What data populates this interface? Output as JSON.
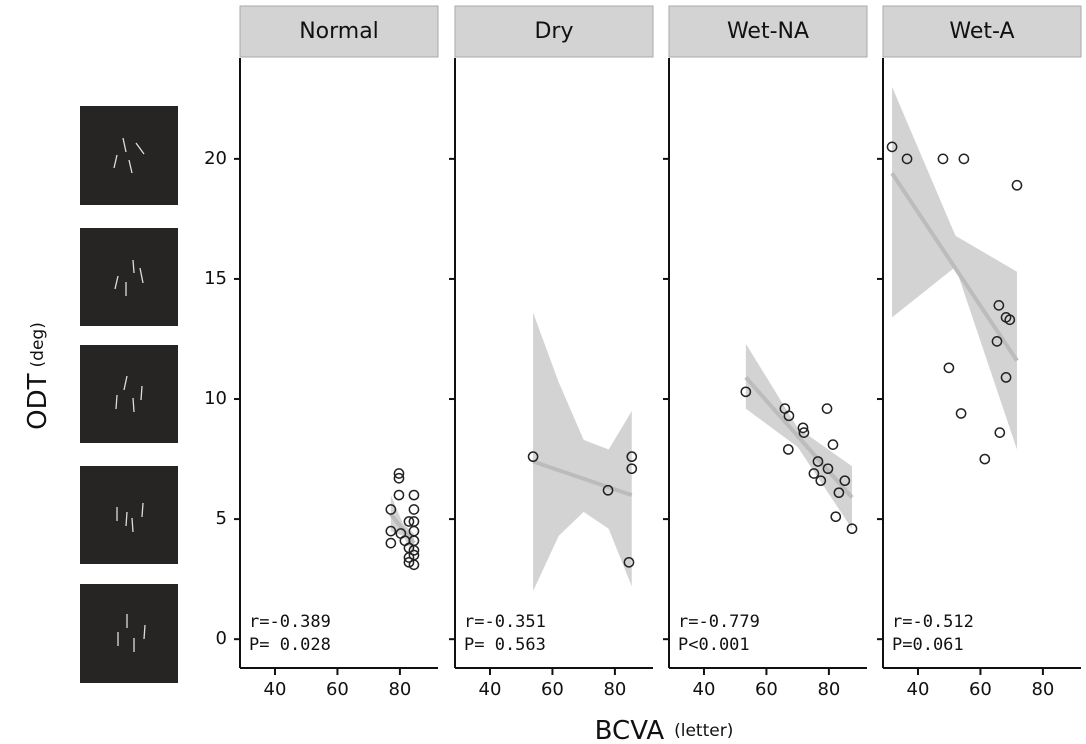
{
  "figure": {
    "y_label": "ODT",
    "y_label_unit": "(deg)",
    "x_label": "BCVA",
    "x_label_unit": "(letter)"
  },
  "chart_data": [
    {
      "type": "scatter",
      "title": "Normal",
      "xlim": [
        28.8,
        92.2
      ],
      "ylim": [
        -1.2,
        24.2
      ],
      "xticks": [
        40,
        60,
        80
      ],
      "yticks": [
        0,
        5,
        10,
        15,
        20
      ],
      "x": [
        79.7,
        79.7,
        79.7,
        84.5,
        77.1,
        84.5,
        84.5,
        82.9,
        77.1,
        80.3,
        84.5,
        81.6,
        77.1,
        84.5,
        82.9,
        84.5,
        82.9,
        84.5,
        82.9,
        84.5
      ],
      "y": [
        6.9,
        6.7,
        6.0,
        6.0,
        5.4,
        5.4,
        4.9,
        4.9,
        4.5,
        4.4,
        4.5,
        4.1,
        4.0,
        4.1,
        3.8,
        3.7,
        3.4,
        3.5,
        3.2,
        3.1
      ],
      "fit": {
        "x": [
          77.1,
          84.5
        ],
        "y": [
          5.2,
          4.0
        ]
      },
      "band": {
        "x": [
          77.1,
          81,
          84.5
        ],
        "lower": [
          4.5,
          4.3,
          3.5
        ],
        "upper": [
          6.0,
          4.8,
          4.4
        ]
      },
      "annotations": [
        "r=-0.389",
        "P= 0.028"
      ]
    },
    {
      "type": "scatter",
      "title": "Dry",
      "xlim": [
        28.8,
        92.2
      ],
      "ylim": [
        -1.2,
        24.2
      ],
      "xticks": [
        40,
        60,
        80
      ],
      "yticks": [
        0,
        5,
        10,
        15,
        20
      ],
      "x": [
        53.8,
        77.8,
        85.4,
        85.4,
        84.5
      ],
      "y": [
        7.6,
        6.2,
        7.6,
        7.1,
        3.2
      ],
      "fit": {
        "x": [
          53.8,
          85.4
        ],
        "y": [
          7.4,
          6.0
        ]
      },
      "band": {
        "x": [
          53.8,
          62,
          70,
          78,
          85.4
        ],
        "lower": [
          2.0,
          4.3,
          5.3,
          4.6,
          2.2
        ],
        "upper": [
          13.6,
          10.7,
          8.3,
          7.9,
          9.5
        ]
      },
      "annotations": [
        "r=-0.351",
        "P= 0.563"
      ]
    },
    {
      "type": "scatter",
      "title": "Wet-NA",
      "xlim": [
        28.8,
        92.2
      ],
      "ylim": [
        -1.2,
        24.2
      ],
      "xticks": [
        40,
        60,
        80
      ],
      "yticks": [
        0,
        5,
        10,
        15,
        20
      ],
      "x": [
        53.4,
        65.9,
        67.2,
        71.7,
        72.0,
        79.4,
        81.3,
        67.0,
        76.5,
        79.7,
        75.2,
        77.4,
        85.1,
        83.2,
        82.2,
        87.4
      ],
      "y": [
        10.3,
        9.6,
        9.3,
        8.8,
        8.6,
        9.6,
        8.1,
        7.9,
        7.4,
        7.1,
        6.9,
        6.6,
        6.6,
        6.1,
        5.1,
        4.6
      ],
      "fit": {
        "x": [
          53.4,
          87.4
        ],
        "y": [
          10.9,
          5.9
        ]
      },
      "band": {
        "x": [
          53.4,
          70,
          87.4
        ],
        "lower": [
          9.6,
          8.0,
          4.6
        ],
        "upper": [
          12.3,
          8.8,
          7.2
        ]
      },
      "annotations": [
        "r=-0.779",
        "P<0.001"
      ]
    },
    {
      "type": "scatter",
      "title": "Wet-A",
      "xlim": [
        28.8,
        92.2
      ],
      "ylim": [
        -1.2,
        24.2
      ],
      "xticks": [
        40,
        60,
        80
      ],
      "yticks": [
        0,
        5,
        10,
        15,
        20
      ],
      "x": [
        31.7,
        36.5,
        48.0,
        54.7,
        71.7,
        65.9,
        68.2,
        69.4,
        65.3,
        49.9,
        68.2,
        53.8,
        66.2,
        61.4
      ],
      "y": [
        20.5,
        20.0,
        20.0,
        20.0,
        18.9,
        13.9,
        13.4,
        13.3,
        12.4,
        11.3,
        10.9,
        9.4,
        8.6,
        7.5
      ],
      "fit": {
        "x": [
          31.7,
          71.7
        ],
        "y": [
          19.4,
          11.6
        ]
      },
      "band": {
        "x": [
          31.7,
          52,
          71.7
        ],
        "lower": [
          13.4,
          15.5,
          7.9
        ],
        "upper": [
          23.0,
          16.8,
          15.3
        ]
      },
      "annotations": [
        "r=-0.512",
        "P=0.061"
      ]
    }
  ]
}
